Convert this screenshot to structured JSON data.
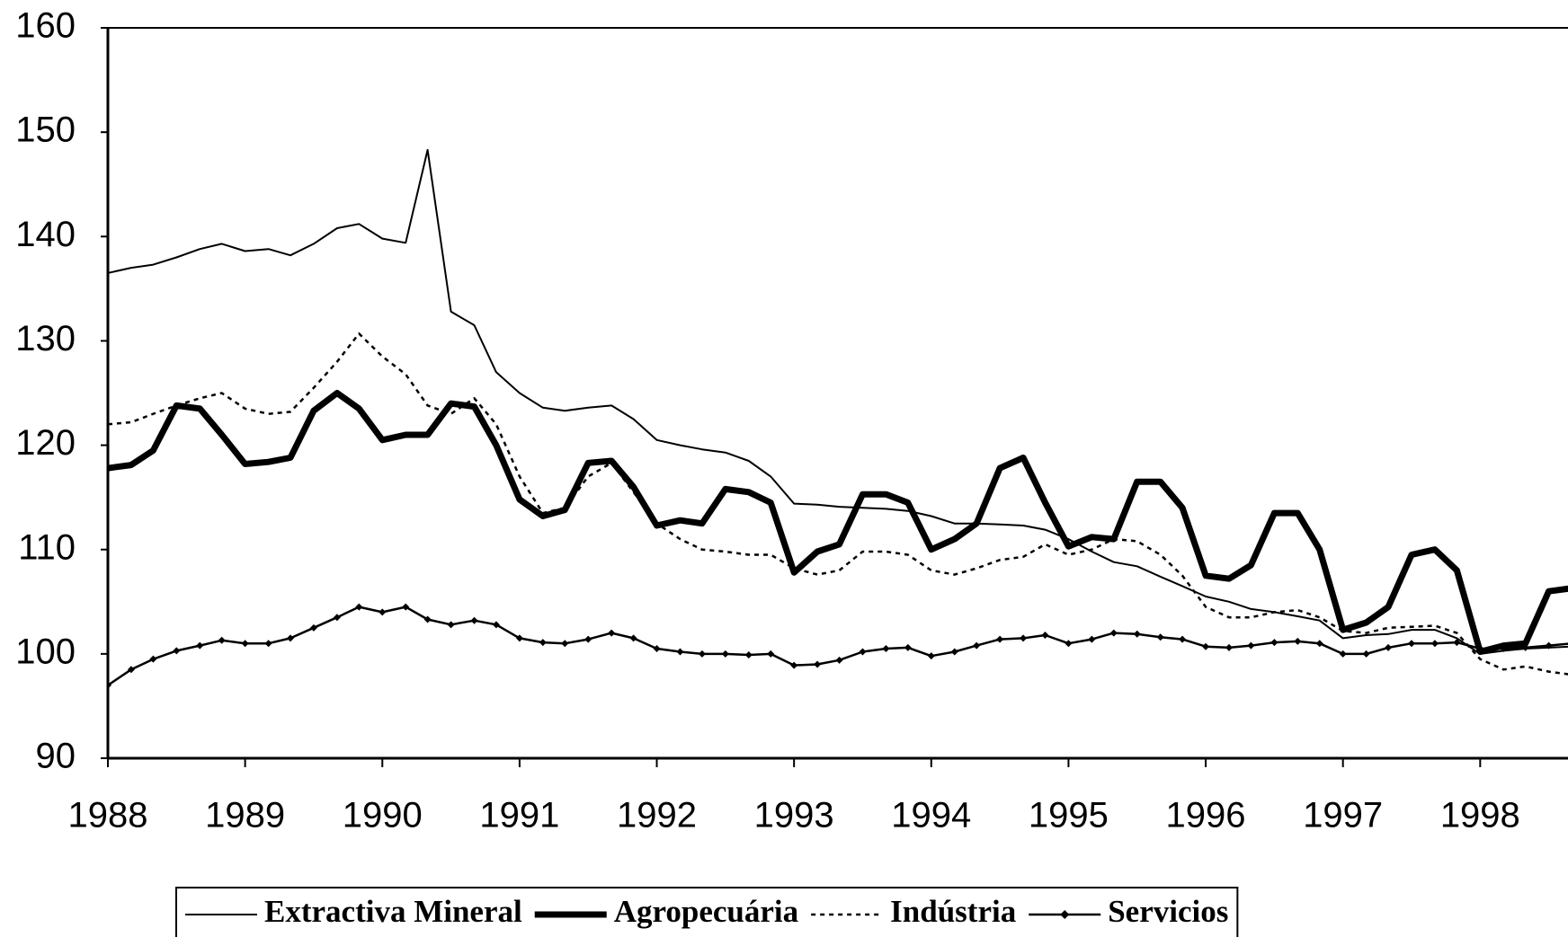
{
  "chart_data": {
    "type": "line",
    "x": [
      1988,
      1988.17,
      1988.33,
      1988.5,
      1988.67,
      1988.83,
      1989,
      1989.17,
      1989.33,
      1989.5,
      1989.67,
      1989.83,
      1990,
      1990.17,
      1990.33,
      1990.5,
      1990.67,
      1990.83,
      1991,
      1991.17,
      1991.33,
      1991.5,
      1991.67,
      1991.83,
      1992,
      1992.17,
      1992.33,
      1992.5,
      1992.67,
      1992.83,
      1993,
      1993.17,
      1993.33,
      1993.5,
      1993.67,
      1993.83,
      1994,
      1994.17,
      1994.33,
      1994.5,
      1994.67,
      1994.83,
      1995,
      1995.17,
      1995.33,
      1995.5,
      1995.67,
      1995.83,
      1996,
      1996.17,
      1996.33,
      1996.5,
      1996.67,
      1996.83,
      1997,
      1997.17,
      1997.33,
      1997.5,
      1997.67,
      1997.83,
      1998,
      1998.17,
      1998.33,
      1998.5,
      1998.67
    ],
    "series": [
      {
        "name": "Extractiva Mineral",
        "color": "#000000",
        "style": "thin",
        "values": [
          136.5,
          137,
          137.3,
          138,
          138.8,
          139.3,
          138.6,
          138.8,
          138.2,
          139.3,
          140.8,
          141.2,
          139.8,
          139.4,
          148.3,
          132.8,
          131.5,
          127,
          125,
          123.6,
          123.3,
          123.6,
          123.8,
          122.5,
          120.5,
          120,
          119.6,
          119.3,
          118.5,
          117,
          114.4,
          114.3,
          114.1,
          114,
          113.9,
          113.7,
          113.2,
          112.5,
          112.5,
          112.4,
          112.3,
          111.9,
          111,
          109.8,
          108.8,
          108.4,
          107.4,
          106.5,
          105.5,
          105,
          104.3,
          104,
          103.6,
          103.2,
          101.5,
          101.8,
          101.9,
          102.3,
          102.3,
          101.5,
          100,
          100.3,
          100.5,
          100.6,
          100.7
        ]
      },
      {
        "name": "Agropecuária",
        "color": "#000000",
        "style": "thick",
        "values": [
          117.8,
          118.1,
          119.5,
          123.8,
          123.5,
          121,
          118.2,
          118.4,
          118.8,
          123.3,
          125,
          123.5,
          120.5,
          121,
          121,
          124,
          123.7,
          120,
          114.8,
          113.2,
          113.8,
          118.3,
          118.5,
          116,
          112.3,
          112.8,
          112.5,
          115.8,
          115.5,
          114.5,
          107.8,
          109.8,
          110.5,
          115.3,
          115.3,
          114.5,
          110,
          111,
          112.5,
          117.8,
          118.8,
          114.5,
          110.3,
          111.2,
          111,
          116.5,
          116.5,
          114,
          107.5,
          107.2,
          108.5,
          113.5,
          113.5,
          110,
          102.3,
          103,
          104.5,
          109.5,
          110,
          108,
          100.2,
          100.8,
          101,
          106,
          106.3
        ]
      },
      {
        "name": "Indústria",
        "color": "#000000",
        "style": "dotted",
        "values": [
          122,
          122.2,
          123,
          123.8,
          124.5,
          125,
          123.5,
          123,
          123.2,
          125.5,
          128,
          130.7,
          128.5,
          126.8,
          123.8,
          123,
          124.5,
          122,
          117,
          113.5,
          114,
          117,
          118.3,
          115.5,
          112.5,
          111,
          110,
          109.8,
          109.5,
          109.5,
          108.2,
          107.6,
          108,
          109.8,
          109.8,
          109.5,
          108,
          107.6,
          108.2,
          109,
          109.3,
          110.5,
          109.5,
          110,
          111,
          110.8,
          109.5,
          107.5,
          104.5,
          103.5,
          103.5,
          104,
          104.2,
          103.5,
          102.2,
          102,
          102.5,
          102.6,
          102.7,
          102,
          99.5,
          98.5,
          98.8,
          98.3,
          98
        ]
      },
      {
        "name": "Servicios",
        "color": "#000000",
        "style": "marked",
        "values": [
          97,
          98.5,
          99.5,
          100.3,
          100.8,
          101.3,
          101,
          101,
          101.5,
          102.5,
          103.5,
          104.5,
          104,
          104.5,
          103.3,
          102.8,
          103.2,
          102.8,
          101.5,
          101.1,
          101,
          101.4,
          102,
          101.5,
          100.5,
          100.2,
          100,
          100,
          99.9,
          100,
          98.9,
          99,
          99.4,
          100.2,
          100.5,
          100.6,
          99.8,
          100.2,
          100.8,
          101.4,
          101.5,
          101.8,
          101,
          101.4,
          102,
          101.9,
          101.6,
          101.4,
          100.7,
          100.6,
          100.8,
          101.1,
          101.2,
          101,
          100,
          100,
          100.6,
          101,
          101,
          101.1,
          100.5,
          100.5,
          100.6,
          100.8,
          101
        ]
      }
    ],
    "xlim": [
      1988,
      1998.64
    ],
    "xticks": [
      1988,
      1989,
      1990,
      1991,
      1992,
      1993,
      1994,
      1995,
      1996,
      1997,
      1998
    ],
    "ylim": [
      90,
      160
    ],
    "yticks": [
      90,
      100,
      110,
      120,
      130,
      140,
      150,
      160
    ],
    "legend": "bottom"
  }
}
